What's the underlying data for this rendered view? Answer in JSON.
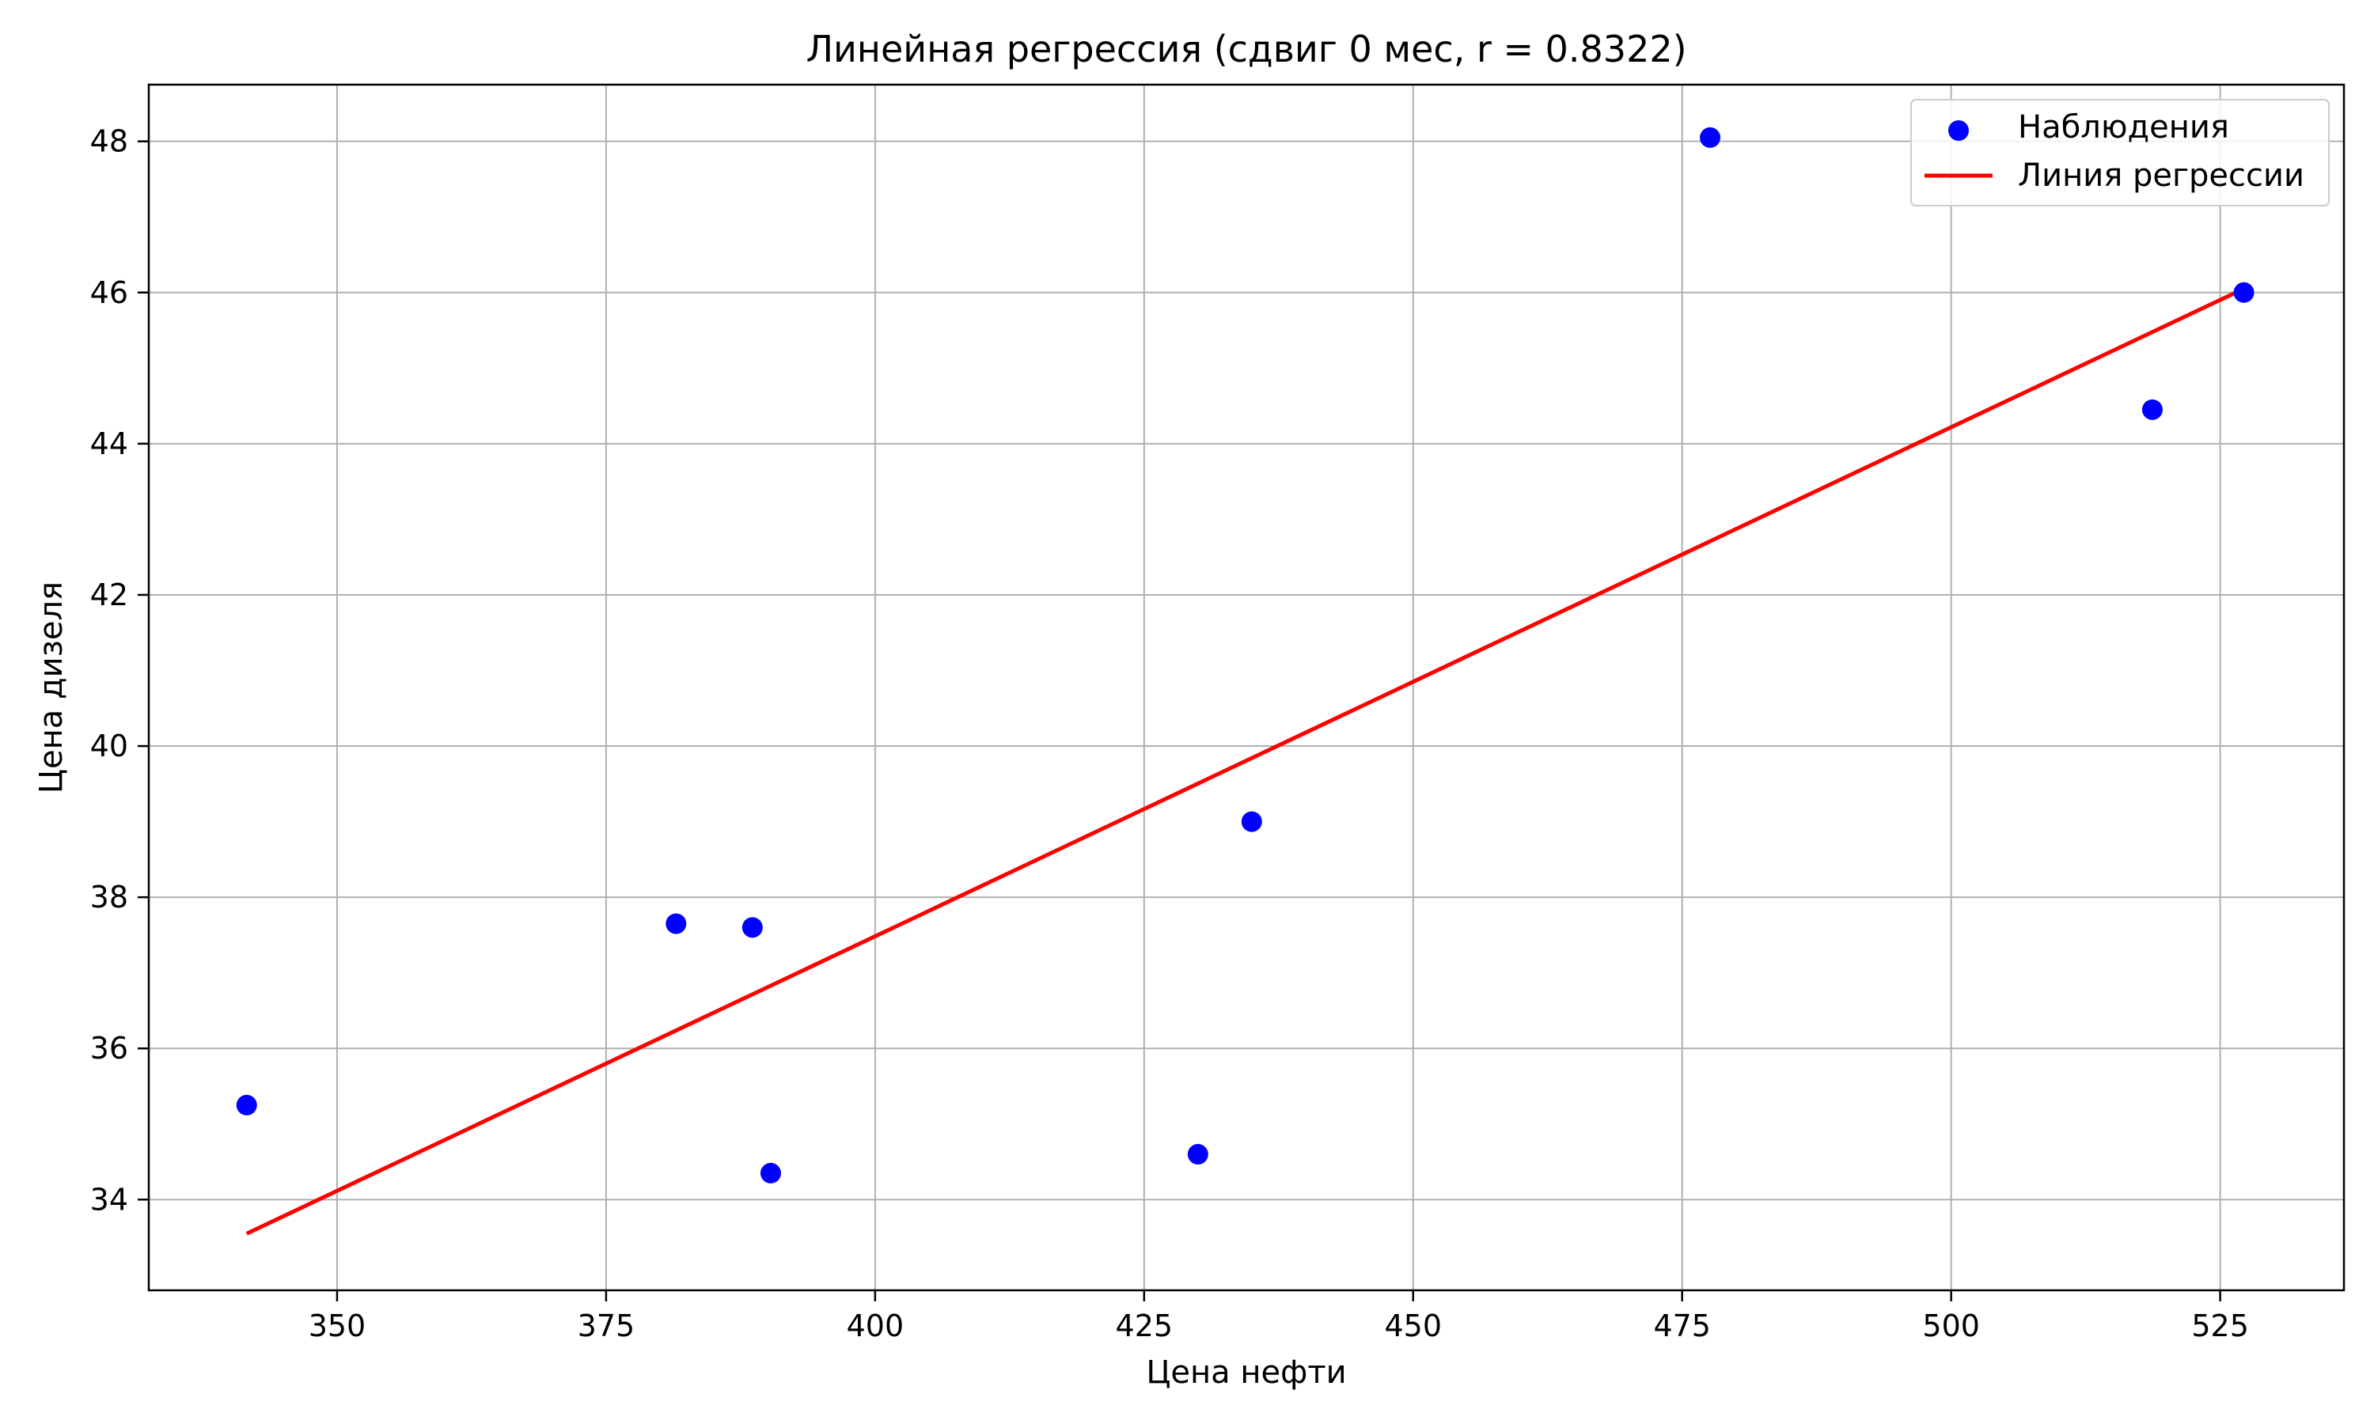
{
  "chart_data": {
    "type": "scatter",
    "title": "Линейная регрессия (сдвиг 0 мес, r = 0.8322)",
    "xlabel": "Цена нефти",
    "ylabel": "Цена дизеля",
    "xlim": [
      332.5,
      536.5
    ],
    "ylim": [
      32.8,
      48.75
    ],
    "xticks": [
      350,
      375,
      400,
      425,
      450,
      475,
      500,
      525
    ],
    "yticks": [
      34,
      36,
      38,
      40,
      42,
      44,
      46,
      48
    ],
    "grid": true,
    "legend_position": "top-right",
    "series": [
      {
        "name": "Наблюдения",
        "kind": "scatter",
        "color": "#0000ff",
        "x": [
          341.6,
          381.5,
          388.6,
          390.3,
          430.0,
          435.0,
          477.6,
          518.7,
          527.2
        ],
        "y": [
          35.25,
          37.65,
          37.6,
          34.35,
          34.6,
          39.0,
          48.05,
          44.45,
          46.0
        ]
      },
      {
        "name": "Линия регрессии",
        "kind": "line",
        "color": "#ff0000",
        "x": [
          341.6,
          527.2
        ],
        "y": [
          33.55,
          46.05
        ]
      }
    ]
  }
}
